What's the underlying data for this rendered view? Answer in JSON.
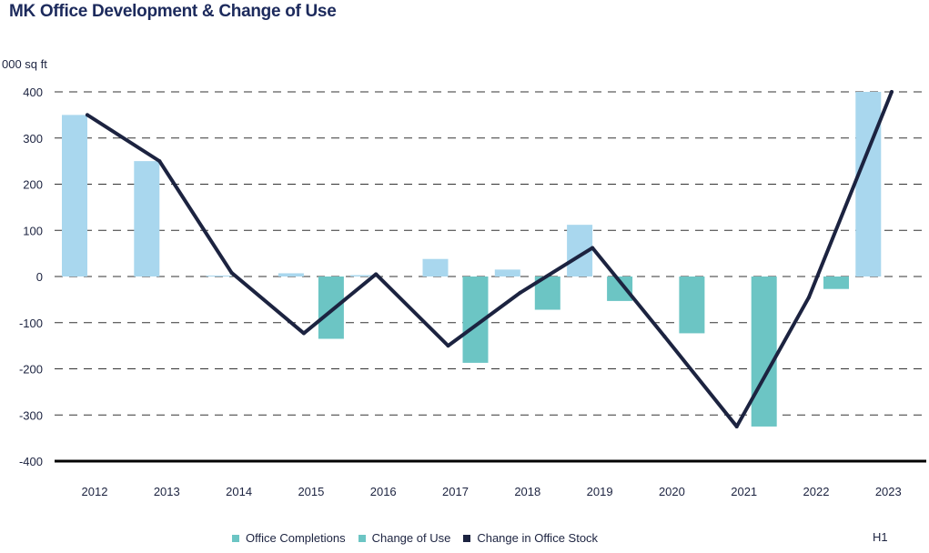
{
  "title": "MK Office Development & Change of Use",
  "unit_label": "000 sq ft",
  "note": "H1",
  "colors": {
    "office_completions": "#a9d7ee",
    "change_of_use": "#6cc5c4",
    "change_in_office_stock": "#1c2340",
    "legend_completions_swatch": "#6cc5c4",
    "grid": "#333333",
    "axis": "#000000"
  },
  "legend": [
    {
      "label": "Office Completions",
      "color": "#6cc5c4"
    },
    {
      "label": "Change of Use",
      "color": "#6cc5c4"
    },
    {
      "label": "Change in Office Stock",
      "color": "#1c2340"
    }
  ],
  "chart_data": {
    "type": "bar",
    "title": "MK Office Development & Change of Use",
    "ylabel": "000 sq ft",
    "xlabel": "",
    "ylim": [
      -400,
      400
    ],
    "yticks": [
      400,
      300,
      200,
      100,
      0,
      -100,
      -200,
      -300,
      -400
    ],
    "ytick_labels": [
      "400",
      "300",
      "200",
      "100",
      "0",
      "-100",
      "-200",
      "-300",
      "-400"
    ],
    "grid": "dashed horizontal",
    "legend_position": "bottom",
    "categories": [
      "2012",
      "2013",
      "2014",
      "2015",
      "2016",
      "2017",
      "2018",
      "2019",
      "2020",
      "2021",
      "2022",
      "2023"
    ],
    "series": [
      {
        "name": "Office Completions",
        "type": "bar",
        "values": [
          350,
          250,
          2,
          7,
          3,
          38,
          15,
          112,
          0,
          0,
          0,
          400
        ]
      },
      {
        "name": "Change of Use",
        "type": "bar",
        "values": [
          0,
          0,
          0,
          -135,
          0,
          -187,
          -72,
          -53,
          -123,
          -325,
          -27,
          0
        ]
      },
      {
        "name": "Change in Office Stock",
        "type": "line",
        "values": [
          350,
          250,
          8,
          -123,
          5,
          -150,
          -35,
          62,
          -130,
          -325,
          -45,
          400
        ]
      }
    ]
  }
}
